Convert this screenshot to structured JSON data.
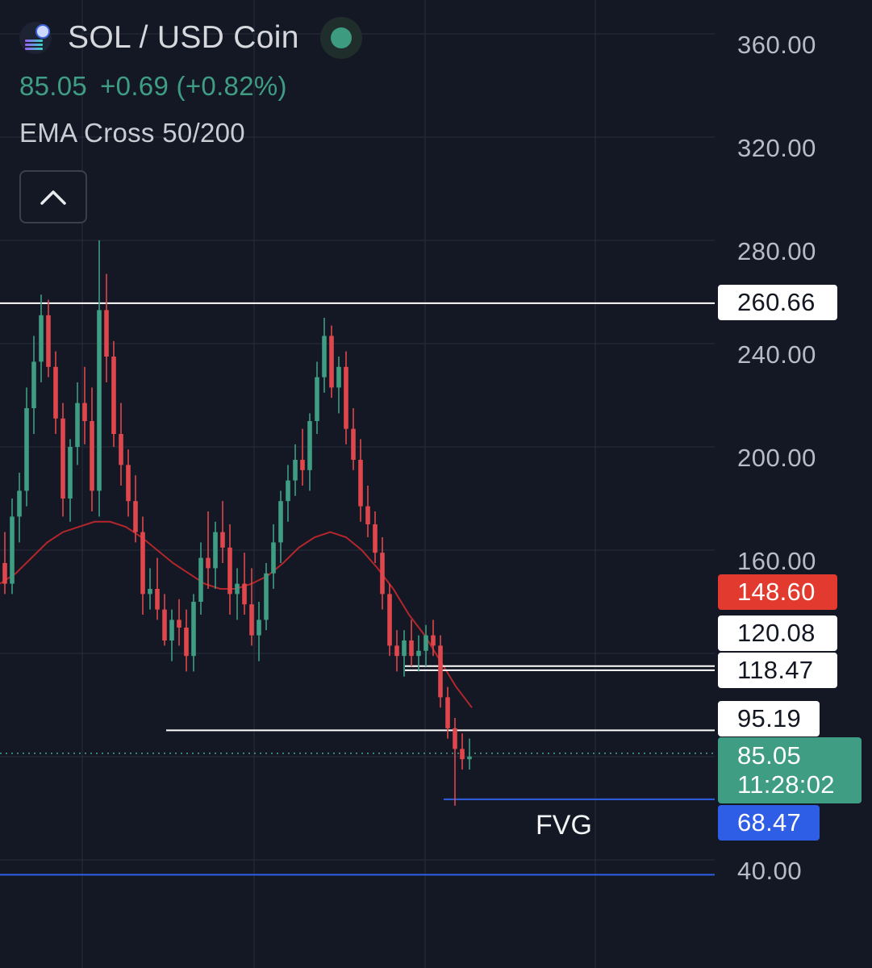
{
  "header": {
    "symbol": "SOL / USD Coin",
    "price": "85.05",
    "change": "+0.69 (+0.82%)",
    "indicator": "EMA Cross 50/200"
  },
  "y_axis_labels": [
    "360.00",
    "320.00",
    "280.00",
    "240.00",
    "200.00",
    "160.00",
    "40.00"
  ],
  "price_tags": {
    "resistance_high": "260.66",
    "ema": "148.60",
    "level_a": "120.08",
    "level_b": "118.47",
    "level_c": "95.19",
    "last_price": "85.05",
    "countdown": "11:28:02",
    "fvg_top": "68.47"
  },
  "fvg_label": "FVG",
  "colors": {
    "background": "#141824",
    "up": "#3f9d84",
    "down": "#e0474c",
    "ema": "#b3262b",
    "fvg_line": "#2f5ee6",
    "level_line": "#ffffff"
  },
  "icons": {
    "coin": "solana-coin-icon",
    "collapse": "chevron-up-icon",
    "status": "market-open-dot-icon"
  },
  "chart_data": {
    "type": "candlestick",
    "ylim": [
      32,
      384
    ],
    "y_ticks": [
      40,
      160,
      200,
      240,
      280,
      320,
      360
    ],
    "horizontal_levels": [
      {
        "price": 260.66,
        "color": "#ffffff",
        "label": "260.66"
      },
      {
        "price": 120.08,
        "color": "#ffffff",
        "label": "120.08"
      },
      {
        "price": 118.47,
        "color": "#ffffff",
        "label": "118.47"
      },
      {
        "price": 95.19,
        "color": "#ffffff",
        "label": "95.19"
      },
      {
        "price": 68.47,
        "color": "#2f5ee6",
        "label": "68.47"
      },
      {
        "price": 48,
        "color": "#2f5ee6",
        "label": ""
      }
    ],
    "last_price": 85.05,
    "ema_last": 148.6,
    "candles": [
      [
        160,
        172,
        148,
        152
      ],
      [
        152,
        185,
        148,
        178
      ],
      [
        178,
        195,
        168,
        188
      ],
      [
        188,
        228,
        182,
        220
      ],
      [
        220,
        248,
        210,
        238
      ],
      [
        238,
        264,
        230,
        256
      ],
      [
        256,
        262,
        232,
        236
      ],
      [
        236,
        242,
        210,
        216
      ],
      [
        216,
        222,
        178,
        185
      ],
      [
        185,
        208,
        176,
        205
      ],
      [
        205,
        230,
        198,
        222
      ],
      [
        222,
        236,
        206,
        215
      ],
      [
        215,
        228,
        180,
        188
      ],
      [
        188,
        285,
        178,
        258
      ],
      [
        258,
        272,
        230,
        240
      ],
      [
        240,
        246,
        205,
        210
      ],
      [
        210,
        222,
        190,
        198
      ],
      [
        198,
        204,
        178,
        184
      ],
      [
        184,
        194,
        168,
        172
      ],
      [
        172,
        178,
        140,
        148
      ],
      [
        148,
        158,
        142,
        150
      ],
      [
        150,
        162,
        138,
        142
      ],
      [
        142,
        148,
        128,
        130
      ],
      [
        130,
        142,
        122,
        138
      ],
      [
        138,
        146,
        128,
        135
      ],
      [
        135,
        142,
        118,
        124
      ],
      [
        124,
        148,
        118,
        145
      ],
      [
        145,
        168,
        140,
        162
      ],
      [
        162,
        180,
        150,
        158
      ],
      [
        158,
        176,
        150,
        172
      ],
      [
        172,
        184,
        160,
        166
      ],
      [
        166,
        175,
        140,
        148
      ],
      [
        148,
        158,
        138,
        152
      ],
      [
        152,
        164,
        140,
        144
      ],
      [
        144,
        158,
        128,
        132
      ],
      [
        132,
        145,
        122,
        138
      ],
      [
        138,
        160,
        134,
        156
      ],
      [
        156,
        175,
        150,
        168
      ],
      [
        168,
        188,
        160,
        184
      ],
      [
        184,
        198,
        176,
        192
      ],
      [
        192,
        206,
        186,
        200
      ],
      [
        200,
        212,
        190,
        196
      ],
      [
        196,
        218,
        188,
        215
      ],
      [
        215,
        238,
        210,
        232
      ],
      [
        232,
        255,
        226,
        248
      ],
      [
        248,
        252,
        224,
        228
      ],
      [
        228,
        240,
        218,
        236
      ],
      [
        236,
        242,
        206,
        212
      ],
      [
        212,
        220,
        196,
        200
      ],
      [
        200,
        208,
        176,
        182
      ],
      [
        182,
        190,
        170,
        175
      ],
      [
        175,
        180,
        160,
        164
      ],
      [
        164,
        170,
        142,
        148
      ],
      [
        148,
        152,
        124,
        128
      ],
      [
        128,
        134,
        118,
        124
      ],
      [
        124,
        134,
        116,
        130
      ],
      [
        130,
        138,
        120,
        124
      ],
      [
        124,
        132,
        118,
        126
      ],
      [
        126,
        136,
        120,
        132
      ],
      [
        132,
        138,
        124,
        128
      ],
      [
        128,
        132,
        104,
        108
      ],
      [
        108,
        112,
        92,
        96
      ],
      [
        96,
        100,
        66,
        88
      ],
      [
        88,
        94,
        80,
        84
      ],
      [
        84,
        92,
        80,
        85.05
      ]
    ],
    "ema": [
      152,
      156,
      162,
      168,
      172,
      174,
      176,
      176,
      174,
      170,
      165,
      160,
      156,
      152,
      150,
      150,
      152,
      155,
      160,
      166,
      170,
      172,
      170,
      165,
      158,
      150,
      140,
      132,
      122,
      112,
      104
    ]
  }
}
